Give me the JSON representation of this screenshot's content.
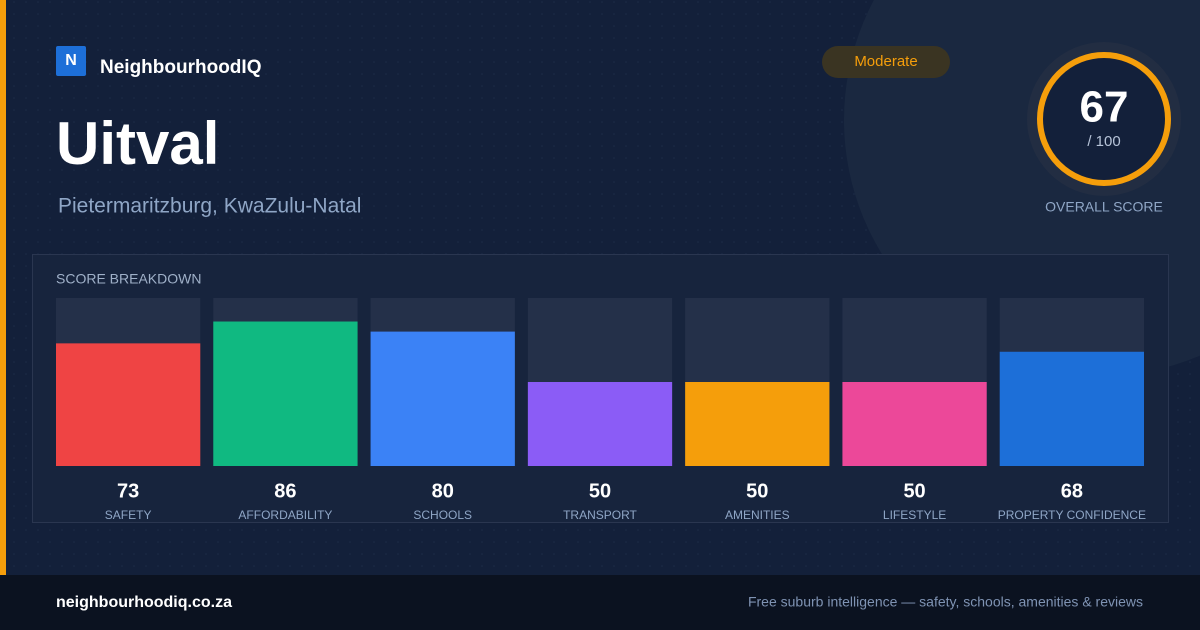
{
  "brand": "NeighbourhoodIQ",
  "logo": "N",
  "badge": "Moderate",
  "title": "Uitval",
  "subtitle": "Pietermaritzburg, KwaZulu-Natal",
  "score": {
    "value": 67,
    "out_of": "/ 100",
    "label": "OVERALL SCORE"
  },
  "chart_data": {
    "type": "bar",
    "title": "SCORE BREAKDOWN",
    "categories": [
      "SAFETY",
      "AFFORDABILITY",
      "SCHOOLS",
      "TRANSPORT",
      "AMENITIES",
      "LIFESTYLE",
      "PROPERTY CONFIDENCE"
    ],
    "values": [
      73,
      86,
      80,
      50,
      50,
      50,
      68
    ],
    "colors": [
      "#ef4444",
      "#10b981",
      "#3b82f6",
      "#8b5cf6",
      "#f59e0b",
      "#ec4899",
      "#1d6fd8"
    ],
    "ylim": [
      0,
      100
    ]
  },
  "footer": {
    "url": "neighbourhoodiq.co.za",
    "tagline": "Free suburb intelligence — safety, schools, amenities & reviews"
  }
}
